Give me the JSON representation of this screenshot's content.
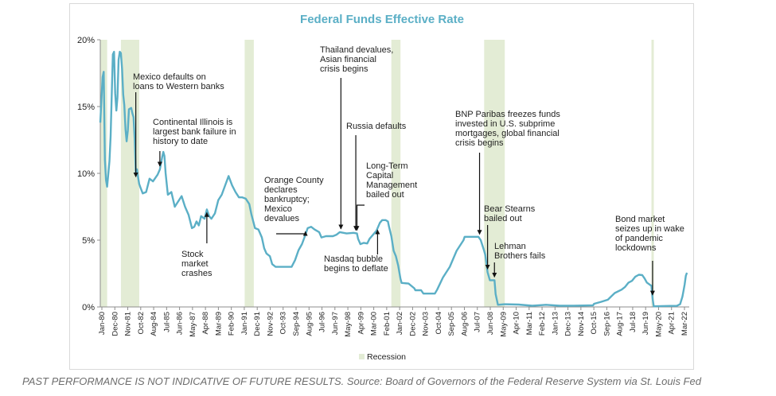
{
  "chart_data": {
    "type": "line",
    "title": "Federal Funds Effective Rate",
    "xlabel": "",
    "ylabel": "",
    "ylim": [
      0,
      20
    ],
    "y_ticks": [
      "0%",
      "5%",
      "10%",
      "15%",
      "20%"
    ],
    "x_ticks": [
      "Jan-80",
      "Dec-80",
      "Nov-81",
      "Oct-82",
      "Aug-84",
      "Jul-85",
      "Jun-86",
      "May-87",
      "Apr-88",
      "Mar-89",
      "Feb-90",
      "Jan-91",
      "Dec-91",
      "Nov-92",
      "Oct-93",
      "Sep-94",
      "Aug-95",
      "Jul-96",
      "Jun-97",
      "May-98",
      "Apr-99",
      "Mar-00",
      "Feb-01",
      "Jan-02",
      "Dec-02",
      "Nov-03",
      "Oct-04",
      "Sep-05",
      "Aug-06",
      "Jul-07",
      "Jun-08",
      "May-09",
      "Apr-10",
      "Mar-11",
      "Feb-12",
      "Jan-13",
      "Dec-13",
      "Nov-14",
      "Oct-15",
      "Sep-16",
      "Aug-17",
      "Jul-18",
      "Jun-19",
      "May-20",
      "Apr-21",
      "Mar-22"
    ],
    "legend": {
      "position": "bottom",
      "entries": [
        "Recession"
      ]
    },
    "grid": false,
    "colors": {
      "line": "#5bafc6",
      "recession": "#e3ecd5",
      "title": "#5bafc6",
      "axis": "#8c8c8c",
      "text": "#1f1f1f"
    },
    "series": [
      {
        "name": "",
        "points": [
          [
            "1980-01",
            13.8
          ],
          [
            "1980-03",
            17.2
          ],
          [
            "1980-04",
            17.6
          ],
          [
            "1980-05",
            11.0
          ],
          [
            "1980-06",
            9.5
          ],
          [
            "1980-07",
            9.0
          ],
          [
            "1980-09",
            10.9
          ],
          [
            "1980-10",
            12.8
          ],
          [
            "1980-11",
            15.9
          ],
          [
            "1980-12",
            18.9
          ],
          [
            "1981-01",
            19.1
          ],
          [
            "1981-02",
            16.0
          ],
          [
            "1981-03",
            14.7
          ],
          [
            "1981-04",
            15.7
          ],
          [
            "1981-05",
            18.5
          ],
          [
            "1981-06",
            19.1
          ],
          [
            "1981-07",
            19.0
          ],
          [
            "1981-08",
            17.8
          ],
          [
            "1981-09",
            15.9
          ],
          [
            "1981-10",
            15.1
          ],
          [
            "1981-11",
            13.3
          ],
          [
            "1981-12",
            12.4
          ],
          [
            "1982-01",
            13.2
          ],
          [
            "1982-02",
            14.8
          ],
          [
            "1982-04",
            14.9
          ],
          [
            "1982-05",
            14.5
          ],
          [
            "1982-06",
            14.2
          ],
          [
            "1982-07",
            12.6
          ],
          [
            "1982-08",
            10.1
          ],
          [
            "1982-09",
            10.3
          ],
          [
            "1982-10",
            9.7
          ],
          [
            "1982-11",
            9.2
          ],
          [
            "1982-12",
            8.95
          ],
          [
            "1983-02",
            8.5
          ],
          [
            "1983-05",
            8.6
          ],
          [
            "1983-08",
            9.6
          ],
          [
            "1983-11",
            9.4
          ],
          [
            "1984-03",
            9.9
          ],
          [
            "1984-05",
            10.3
          ],
          [
            "1984-07",
            11.2
          ],
          [
            "1984-08",
            11.6
          ],
          [
            "1984-09",
            11.3
          ],
          [
            "1984-10",
            10.0
          ],
          [
            "1984-12",
            8.4
          ],
          [
            "1985-03",
            8.6
          ],
          [
            "1985-06",
            7.5
          ],
          [
            "1985-09",
            7.9
          ],
          [
            "1985-12",
            8.3
          ],
          [
            "1986-03",
            7.5
          ],
          [
            "1986-06",
            6.9
          ],
          [
            "1986-09",
            5.9
          ],
          [
            "1986-11",
            6.0
          ],
          [
            "1987-01",
            6.4
          ],
          [
            "1987-03",
            6.1
          ],
          [
            "1987-05",
            6.8
          ],
          [
            "1987-08",
            6.6
          ],
          [
            "1987-10",
            7.3
          ],
          [
            "1987-12",
            6.8
          ],
          [
            "1988-02",
            6.6
          ],
          [
            "1988-05",
            7.0
          ],
          [
            "1988-08",
            8.0
          ],
          [
            "1988-11",
            8.4
          ],
          [
            "1989-02",
            9.1
          ],
          [
            "1989-05",
            9.8
          ],
          [
            "1989-08",
            9.1
          ],
          [
            "1989-11",
            8.6
          ],
          [
            "1990-02",
            8.2
          ],
          [
            "1990-05",
            8.2
          ],
          [
            "1990-08",
            8.1
          ],
          [
            "1990-11",
            7.7
          ],
          [
            "1991-01",
            6.9
          ],
          [
            "1991-04",
            5.9
          ],
          [
            "1991-07",
            5.8
          ],
          [
            "1991-10",
            5.2
          ],
          [
            "1991-12",
            4.4
          ],
          [
            "1992-02",
            4.0
          ],
          [
            "1992-05",
            3.8
          ],
          [
            "1992-07",
            3.2
          ],
          [
            "1992-10",
            3.0
          ],
          [
            "1993-01",
            3.0
          ],
          [
            "1993-06",
            3.0
          ],
          [
            "1993-12",
            3.0
          ],
          [
            "1994-03",
            3.5
          ],
          [
            "1994-06",
            4.25
          ],
          [
            "1994-09",
            4.7
          ],
          [
            "1994-12",
            5.4
          ],
          [
            "1995-02",
            5.9
          ],
          [
            "1995-05",
            6.0
          ],
          [
            "1995-08",
            5.8
          ],
          [
            "1995-12",
            5.6
          ],
          [
            "1996-02",
            5.2
          ],
          [
            "1996-06",
            5.3
          ],
          [
            "1996-12",
            5.3
          ],
          [
            "1997-03",
            5.4
          ],
          [
            "1997-06",
            5.6
          ],
          [
            "1997-12",
            5.5
          ],
          [
            "1998-06",
            5.55
          ],
          [
            "1998-09",
            5.5
          ],
          [
            "1998-10",
            5.1
          ],
          [
            "1998-12",
            4.7
          ],
          [
            "1999-03",
            4.8
          ],
          [
            "1999-06",
            4.75
          ],
          [
            "1999-08",
            5.1
          ],
          [
            "1999-11",
            5.4
          ],
          [
            "2000-02",
            5.7
          ],
          [
            "2000-05",
            6.3
          ],
          [
            "2000-07",
            6.5
          ],
          [
            "2000-10",
            6.5
          ],
          [
            "2000-12",
            6.4
          ],
          [
            "2001-01",
            6.0
          ],
          [
            "2001-03",
            5.3
          ],
          [
            "2001-05",
            4.2
          ],
          [
            "2001-07",
            3.8
          ],
          [
            "2001-09",
            3.1
          ],
          [
            "2001-11",
            2.1
          ],
          [
            "2001-12",
            1.8
          ],
          [
            "2002-06",
            1.75
          ],
          [
            "2002-11",
            1.4
          ],
          [
            "2002-12",
            1.25
          ],
          [
            "2003-05",
            1.25
          ],
          [
            "2003-07",
            1.0
          ],
          [
            "2004-05",
            1.0
          ],
          [
            "2004-07",
            1.3
          ],
          [
            "2004-12",
            2.2
          ],
          [
            "2005-06",
            3.0
          ],
          [
            "2005-12",
            4.2
          ],
          [
            "2006-06",
            5.0
          ],
          [
            "2006-07",
            5.25
          ],
          [
            "2007-07",
            5.25
          ],
          [
            "2007-09",
            5.0
          ],
          [
            "2007-12",
            4.2
          ],
          [
            "2008-01",
            3.9
          ],
          [
            "2008-03",
            2.6
          ],
          [
            "2008-05",
            2.0
          ],
          [
            "2008-09",
            2.0
          ],
          [
            "2008-10",
            0.97
          ],
          [
            "2008-12",
            0.16
          ],
          [
            "2009-06",
            0.2
          ],
          [
            "2010-06",
            0.18
          ],
          [
            "2011-06",
            0.09
          ],
          [
            "2012-06",
            0.16
          ],
          [
            "2013-06",
            0.09
          ],
          [
            "2014-06",
            0.09
          ],
          [
            "2015-11",
            0.12
          ],
          [
            "2015-12",
            0.24
          ],
          [
            "2016-06",
            0.38
          ],
          [
            "2016-12",
            0.54
          ],
          [
            "2017-03",
            0.8
          ],
          [
            "2017-06",
            1.04
          ],
          [
            "2017-12",
            1.3
          ],
          [
            "2018-03",
            1.5
          ],
          [
            "2018-06",
            1.82
          ],
          [
            "2018-09",
            1.95
          ],
          [
            "2018-12",
            2.27
          ],
          [
            "2019-03",
            2.41
          ],
          [
            "2019-06",
            2.38
          ],
          [
            "2019-08",
            2.13
          ],
          [
            "2019-10",
            1.83
          ],
          [
            "2020-02",
            1.58
          ],
          [
            "2020-03",
            0.65
          ],
          [
            "2020-04",
            0.05
          ],
          [
            "2021-06",
            0.08
          ],
          [
            "2021-12",
            0.08
          ],
          [
            "2022-03",
            0.2
          ],
          [
            "2022-05",
            0.77
          ],
          [
            "2022-06",
            1.21
          ],
          [
            "2022-07",
            1.68
          ],
          [
            "2022-08",
            2.33
          ],
          [
            "2022-09",
            2.56
          ]
        ]
      }
    ],
    "recessions": [
      [
        "1980-01",
        "1980-07"
      ],
      [
        "1981-07",
        "1982-11"
      ],
      [
        "1990-07",
        "1991-03"
      ],
      [
        "2001-03",
        "2001-11"
      ],
      [
        "2007-12",
        "2009-06"
      ],
      [
        "2020-02",
        "2020-04"
      ]
    ],
    "annotations": [
      {
        "text": "Mexico defaults on loans to Western banks",
        "lines": [
          "Mexico defaults on",
          "loans to Western banks"
        ],
        "date": "1982-08",
        "value": 9.5
      },
      {
        "text": "Continental Illinois is largest bank failure in history to date",
        "lines": [
          "Continental Illinois is",
          "largest bank failure in",
          "history to date"
        ],
        "date": "1984-05",
        "value": 10.3
      },
      {
        "text": "Stock market crashes",
        "lines": [
          "Stock",
          "market",
          "crashes"
        ],
        "date": "1987-10",
        "value": 7.3
      },
      {
        "text": "Orange County declares bankruptcy; Mexico devalues",
        "lines": [
          "Orange County",
          "declares",
          "bankruptcy;",
          "Mexico",
          "devalues"
        ],
        "date": "1994-12",
        "value": 5.4
      },
      {
        "text": "Thailand devalues, Asian financial crisis begins",
        "lines": [
          "Thailand devalues,",
          "Asian financial",
          "crisis begins"
        ],
        "date": "1997-07",
        "value": 5.6
      },
      {
        "text": "Russia defaults",
        "lines": [
          "Russia defaults"
        ],
        "date": "1998-08",
        "value": 5.5
      },
      {
        "text": "Long-Term Capital Management bailed out",
        "lines": [
          "Long-Term",
          "Capital",
          "Management",
          "bailed out"
        ],
        "date": "1998-09",
        "value": 5.5
      },
      {
        "text": "Nasdaq bubble begins to deflate",
        "lines": [
          "Nasdaq bubble",
          "begins to deflate"
        ],
        "date": "2000-03",
        "value": 6.0
      },
      {
        "text": "BNP Paribas freezes funds invested in U.S. subprime mortgages, global financial crisis begins",
        "lines": [
          "BNP Paribas freezes funds",
          "invested in U.S. subprime",
          "mortgages, global financial",
          "crisis begins"
        ],
        "date": "2007-08",
        "value": 5.2
      },
      {
        "text": "Bear Stearns bailed out",
        "lines": [
          "Bear Stearns",
          "bailed out"
        ],
        "date": "2008-03",
        "value": 2.6
      },
      {
        "text": "Lehman Brothers fails",
        "lines": [
          "Lehman",
          "Brothers fails"
        ],
        "date": "2008-09",
        "value": 2.0
      },
      {
        "text": "Bond market seizes up in wake of pandemic lockdowns",
        "lines": [
          "Bond market",
          "seizes up in wake",
          "of pandemic",
          "lockdowns"
        ],
        "date": "2020-03",
        "value": 0.65
      }
    ]
  },
  "footer": {
    "disclaimer": "PAST PERFORMANCE IS NOT INDICATIVE OF FUTURE RESULTS. Source: Board of Governors of the Federal Reserve System via St. Louis Fed"
  }
}
